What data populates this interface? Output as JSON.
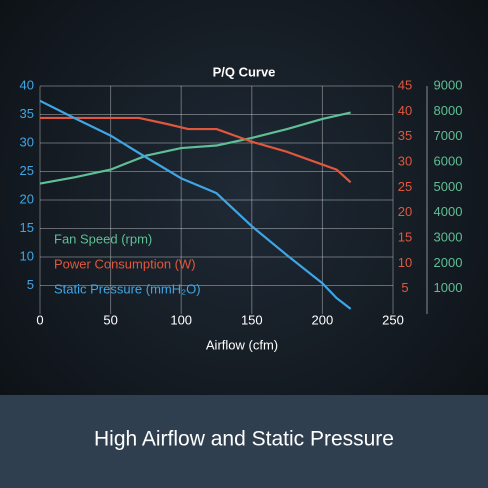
{
  "chart_data": {
    "type": "line",
    "title": "P/Q Curve",
    "xlabel": "Airflow (cfm)",
    "xlim": [
      0,
      250
    ],
    "xticks": [
      0,
      50,
      100,
      150,
      200,
      250
    ],
    "ylim": [
      0,
      40
    ],
    "yticks": [
      5,
      10,
      15,
      20,
      25,
      30,
      35,
      40
    ],
    "y2lim": [
      0,
      45
    ],
    "y2ticks": [
      5,
      10,
      15,
      20,
      25,
      30,
      35,
      40,
      45
    ],
    "y3lim": [
      0,
      9000
    ],
    "y3ticks": [
      1000,
      2000,
      3000,
      4000,
      5000,
      6000,
      7000,
      8000,
      9000
    ],
    "grid": true,
    "legend": "lower left",
    "series": [
      {
        "name": "Fan Speed (rpm)",
        "color": "#5fbf95",
        "axis": "y3",
        "x": [
          0,
          25,
          50,
          75,
          100,
          125,
          150,
          175,
          200,
          220
        ],
        "values": [
          5150,
          5400,
          5700,
          6250,
          6550,
          6650,
          6950,
          7300,
          7700,
          7950
        ]
      },
      {
        "name": "Power Consumption (W)",
        "color": "#e0573e",
        "axis": "y2",
        "x": [
          0,
          70,
          90,
          105,
          125,
          150,
          175,
          200,
          210,
          220
        ],
        "values": [
          38.7,
          38.7,
          37.5,
          36.5,
          36.5,
          34,
          32,
          29.5,
          28.5,
          26
        ]
      },
      {
        "name": "Static Pressure (mmH₂O)",
        "color": "#3fa6e6",
        "x": [
          0,
          25,
          50,
          75,
          100,
          125,
          150,
          175,
          200,
          210,
          220
        ],
        "values": [
          37.4,
          34.3,
          31.3,
          27.5,
          23.8,
          21.2,
          15.4,
          10.3,
          5.4,
          2.8,
          0.9
        ]
      }
    ]
  },
  "banner": {
    "text": "High Airflow and Static Pressure"
  }
}
